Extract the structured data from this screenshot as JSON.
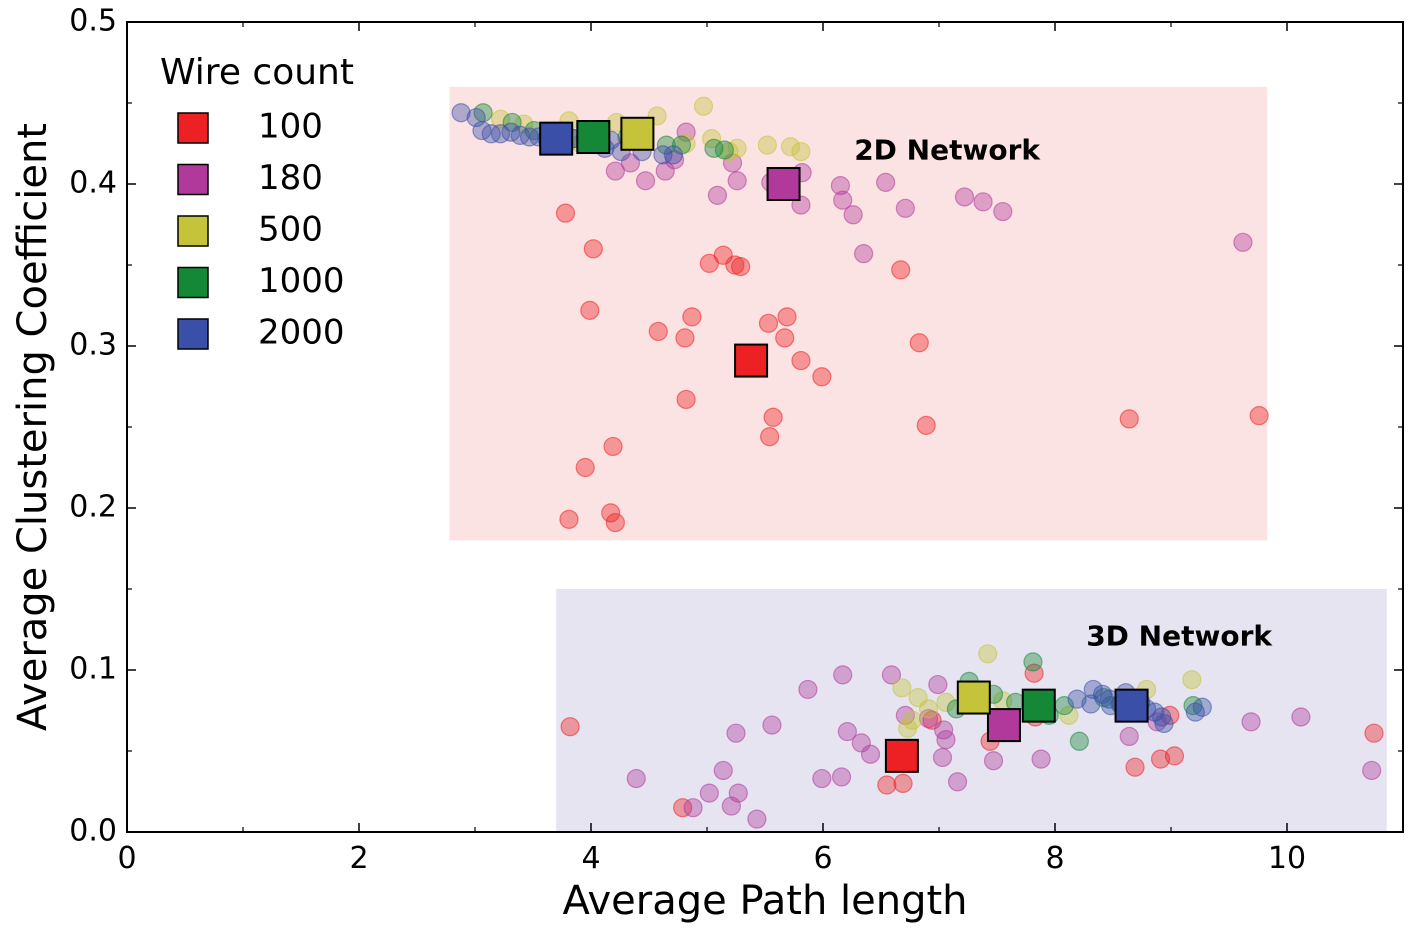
{
  "chart_data": {
    "type": "scatter",
    "title": "",
    "xlabel": "Average Path length",
    "ylabel": "Average Clustering Coefficient",
    "xlim": [
      0,
      11
    ],
    "ylim": [
      0,
      0.5
    ],
    "x_ticks": [
      0,
      2,
      4,
      6,
      8,
      10
    ],
    "y_ticks": [
      0.0,
      0.1,
      0.2,
      0.3,
      0.4,
      0.5
    ],
    "x_tick_labels": [
      "0",
      "2",
      "4",
      "6",
      "8",
      "10"
    ],
    "y_tick_labels": [
      "0.0",
      "0.1",
      "0.2",
      "0.3",
      "0.4",
      "0.5"
    ],
    "x_minor_ticks": [
      1,
      3,
      5,
      7,
      9
    ],
    "y_minor_ticks": [
      0.05,
      0.15,
      0.25,
      0.35,
      0.45
    ],
    "legend": {
      "title": "Wire count",
      "position": "top-left"
    },
    "regions": [
      {
        "label": "2D Network",
        "x_range": [
          2.78,
          9.83
        ],
        "y_range": [
          0.18,
          0.46
        ],
        "color": "#fce3e3",
        "label_at": [
          7.07,
          0.42
        ]
      },
      {
        "label": "3D Network",
        "x_range": [
          3.7,
          10.86
        ],
        "y_range": [
          0.0,
          0.15
        ],
        "color": "#e6e4f1",
        "label_at": [
          9.07,
          0.12
        ]
      }
    ],
    "series": [
      {
        "name": "100",
        "color": "#ed2024",
        "mean_2d": [
          5.38,
          0.291
        ],
        "mean_3d": [
          6.68,
          0.047
        ],
        "points": [
          [
            3.78,
            0.382
          ],
          [
            4.02,
            0.36
          ],
          [
            3.99,
            0.322
          ],
          [
            5.02,
            0.351
          ],
          [
            5.14,
            0.356
          ],
          [
            5.24,
            0.35
          ],
          [
            5.29,
            0.349
          ],
          [
            4.58,
            0.309
          ],
          [
            4.87,
            0.318
          ],
          [
            4.81,
            0.305
          ],
          [
            5.53,
            0.314
          ],
          [
            5.69,
            0.318
          ],
          [
            5.67,
            0.305
          ],
          [
            5.81,
            0.291
          ],
          [
            5.99,
            0.281
          ],
          [
            6.67,
            0.347
          ],
          [
            6.83,
            0.302
          ],
          [
            4.82,
            0.267
          ],
          [
            5.57,
            0.256
          ],
          [
            5.54,
            0.244
          ],
          [
            6.89,
            0.251
          ],
          [
            8.64,
            0.255
          ],
          [
            9.76,
            0.257
          ],
          [
            4.19,
            0.238
          ],
          [
            3.95,
            0.225
          ],
          [
            3.81,
            0.193
          ],
          [
            4.17,
            0.197
          ],
          [
            4.21,
            0.191
          ],
          [
            3.82,
            0.065
          ],
          [
            4.79,
            0.015
          ],
          [
            6.55,
            0.029
          ],
          [
            6.69,
            0.03
          ],
          [
            7.44,
            0.056
          ],
          [
            7.83,
            0.071
          ],
          [
            7.82,
            0.098
          ],
          [
            8.69,
            0.04
          ],
          [
            8.91,
            0.045
          ],
          [
            9.03,
            0.047
          ],
          [
            10.75,
            0.061
          ],
          [
            8.99,
            0.072
          ],
          [
            6.94,
            0.069
          ]
        ]
      },
      {
        "name": "180",
        "color": "#b0399b",
        "mean_2d": [
          5.66,
          0.4
        ],
        "mean_3d": [
          7.56,
          0.066
        ],
        "points": [
          [
            4.82,
            0.432
          ],
          [
            5.22,
            0.413
          ],
          [
            4.72,
            0.415
          ],
          [
            4.21,
            0.408
          ],
          [
            4.34,
            0.413
          ],
          [
            4.47,
            0.402
          ],
          [
            4.64,
            0.408
          ],
          [
            5.09,
            0.393
          ],
          [
            5.26,
            0.402
          ],
          [
            5.55,
            0.401
          ],
          [
            5.82,
            0.407
          ],
          [
            5.81,
            0.387
          ],
          [
            6.15,
            0.399
          ],
          [
            6.17,
            0.39
          ],
          [
            6.26,
            0.381
          ],
          [
            6.35,
            0.357
          ],
          [
            6.54,
            0.401
          ],
          [
            6.71,
            0.385
          ],
          [
            7.22,
            0.392
          ],
          [
            7.38,
            0.389
          ],
          [
            7.55,
            0.383
          ],
          [
            9.62,
            0.364
          ],
          [
            5.25,
            0.061
          ],
          [
            5.56,
            0.066
          ],
          [
            5.87,
            0.088
          ],
          [
            5.99,
            0.033
          ],
          [
            6.17,
            0.097
          ],
          [
            6.21,
            0.062
          ],
          [
            6.16,
            0.034
          ],
          [
            6.33,
            0.055
          ],
          [
            6.41,
            0.048
          ],
          [
            6.59,
            0.097
          ],
          [
            6.71,
            0.072
          ],
          [
            6.91,
            0.07
          ],
          [
            7.04,
            0.063
          ],
          [
            7.06,
            0.057
          ],
          [
            7.03,
            0.046
          ],
          [
            7.47,
            0.044
          ],
          [
            7.88,
            0.045
          ],
          [
            8.64,
            0.059
          ],
          [
            8.88,
            0.068
          ],
          [
            9.69,
            0.068
          ],
          [
            10.12,
            0.071
          ],
          [
            10.73,
            0.038
          ],
          [
            6.99,
            0.091
          ],
          [
            4.88,
            0.015
          ],
          [
            5.02,
            0.024
          ],
          [
            5.27,
            0.024
          ],
          [
            5.14,
            0.038
          ],
          [
            5.43,
            0.008
          ],
          [
            5.21,
            0.016
          ],
          [
            4.39,
            0.033
          ],
          [
            7.16,
            0.031
          ]
        ]
      },
      {
        "name": "500",
        "color": "#c4c33a",
        "mean_2d": [
          4.4,
          0.431
        ],
        "mean_3d": [
          7.3,
          0.083
        ],
        "points": [
          [
            3.22,
            0.44
          ],
          [
            3.42,
            0.437
          ],
          [
            3.65,
            0.431
          ],
          [
            3.81,
            0.439
          ],
          [
            4.22,
            0.438
          ],
          [
            4.57,
            0.442
          ],
          [
            4.97,
            0.448
          ],
          [
            5.04,
            0.428
          ],
          [
            5.26,
            0.422
          ],
          [
            5.52,
            0.424
          ],
          [
            5.72,
            0.423
          ],
          [
            5.81,
            0.42
          ],
          [
            4.82,
            0.425
          ],
          [
            5.19,
            0.42
          ],
          [
            3.91,
            0.425
          ],
          [
            6.68,
            0.089
          ],
          [
            6.82,
            0.083
          ],
          [
            6.91,
            0.076
          ],
          [
            6.73,
            0.064
          ],
          [
            7.42,
            0.11
          ],
          [
            7.55,
            0.081
          ],
          [
            8.12,
            0.072
          ],
          [
            8.79,
            0.088
          ],
          [
            9.18,
            0.094
          ],
          [
            6.77,
            0.069
          ],
          [
            7.06,
            0.08
          ]
        ]
      },
      {
        "name": "1000",
        "color": "#158838",
        "mean_2d": [
          4.02,
          0.429
        ],
        "mean_3d": [
          7.86,
          0.078
        ],
        "points": [
          [
            3.07,
            0.444
          ],
          [
            3.32,
            0.438
          ],
          [
            3.51,
            0.433
          ],
          [
            3.72,
            0.432
          ],
          [
            3.96,
            0.431
          ],
          [
            4.31,
            0.429
          ],
          [
            4.65,
            0.424
          ],
          [
            4.78,
            0.424
          ],
          [
            5.06,
            0.422
          ],
          [
            5.15,
            0.421
          ],
          [
            3.85,
            0.428
          ],
          [
            7.26,
            0.093
          ],
          [
            7.47,
            0.085
          ],
          [
            7.66,
            0.08
          ],
          [
            7.81,
            0.105
          ],
          [
            8.08,
            0.078
          ],
          [
            8.21,
            0.056
          ],
          [
            8.42,
            0.083
          ],
          [
            8.56,
            0.079
          ],
          [
            9.19,
            0.078
          ],
          [
            7.95,
            0.072
          ],
          [
            7.15,
            0.076
          ]
        ]
      },
      {
        "name": "2000",
        "color": "#3a4fa8",
        "mean_2d": [
          3.7,
          0.428
        ],
        "mean_3d": [
          8.66,
          0.078
        ],
        "points": [
          [
            2.88,
            0.444
          ],
          [
            3.01,
            0.441
          ],
          [
            3.06,
            0.433
          ],
          [
            3.14,
            0.431
          ],
          [
            3.22,
            0.431
          ],
          [
            3.31,
            0.432
          ],
          [
            3.39,
            0.43
          ],
          [
            3.47,
            0.429
          ],
          [
            3.55,
            0.429
          ],
          [
            3.62,
            0.428
          ],
          [
            3.71,
            0.428
          ],
          [
            3.85,
            0.428
          ],
          [
            3.95,
            0.428
          ],
          [
            4.12,
            0.422
          ],
          [
            4.26,
            0.42
          ],
          [
            4.44,
            0.42
          ],
          [
            4.62,
            0.418
          ],
          [
            4.71,
            0.418
          ],
          [
            4.17,
            0.427
          ],
          [
            8.19,
            0.082
          ],
          [
            8.31,
            0.079
          ],
          [
            8.41,
            0.085
          ],
          [
            8.47,
            0.082
          ],
          [
            8.57,
            0.079
          ],
          [
            8.61,
            0.086
          ],
          [
            8.74,
            0.08
          ],
          [
            8.79,
            0.076
          ],
          [
            8.86,
            0.074
          ],
          [
            8.92,
            0.071
          ],
          [
            8.94,
            0.067
          ],
          [
            9.21,
            0.074
          ],
          [
            9.27,
            0.077
          ],
          [
            8.33,
            0.088
          ],
          [
            8.48,
            0.078
          ]
        ]
      }
    ]
  }
}
